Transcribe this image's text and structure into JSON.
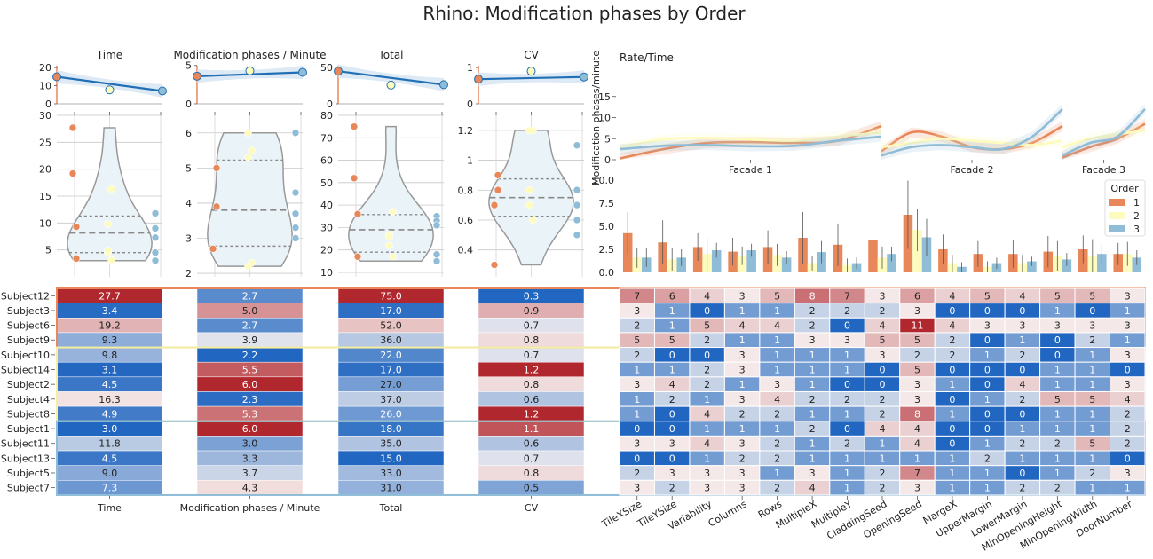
{
  "title": "Rhino: Modification phases by Order",
  "colors": {
    "order1": "#e8875a",
    "order2": "#fdfbbd",
    "order3": "#8fbcd6",
    "line": "#2170b5",
    "violin_fill": "#eaf3f8",
    "violin_stroke": "#999999",
    "heat_low": "#2166c0",
    "heat_mid": "#f7f2f1",
    "heat_high": "#b1272e"
  },
  "subjects": [
    "Subject12",
    "Subject3",
    "Subject6",
    "Subject9",
    "Subject10",
    "Subject14",
    "Subject2",
    "Subject4",
    "Subject8",
    "Subject1",
    "Subject11",
    "Subject13",
    "Subject5",
    "Subject7"
  ],
  "subject_order": [
    1,
    1,
    1,
    1,
    2,
    2,
    2,
    2,
    2,
    3,
    3,
    3,
    3,
    3
  ],
  "chart_data": [
    {
      "type": "violin",
      "title": "Time",
      "xlabel": "Time",
      "ylim": [
        0,
        30
      ],
      "yticks": [
        5,
        10,
        15,
        20,
        25,
        30
      ],
      "values": [
        27.7,
        3.4,
        19.2,
        9.3,
        9.8,
        3.1,
        4.5,
        16.3,
        4.9,
        3.0,
        11.8,
        4.5,
        9.0,
        7.3
      ],
      "value_labels": [
        "27.7",
        "3.4",
        "19.2",
        "9.3",
        "9.8",
        "3.1",
        "4.5",
        "16.3",
        "4.9",
        "3.0",
        "11.8",
        "4.5",
        "9.0",
        "7.3"
      ],
      "trend": {
        "ylim": [
          0,
          22
        ],
        "yticks": [
          0,
          10,
          20
        ],
        "means": [
          14.9,
          7.7,
          7.1
        ]
      }
    },
    {
      "type": "violin",
      "title": "Modification phases / Minute",
      "xlabel": "Modification phases / Minute",
      "ylim": [
        1.9,
        6.5
      ],
      "yticks": [
        2,
        3,
        4,
        5,
        6
      ],
      "values": [
        2.7,
        5.0,
        2.7,
        3.9,
        2.2,
        5.5,
        6.0,
        2.3,
        5.3,
        6.0,
        3.0,
        3.3,
        3.7,
        4.3
      ],
      "value_labels": [
        "2.7",
        "5.0",
        "2.7",
        "3.9",
        "2.2",
        "5.5",
        "6.0",
        "2.3",
        "5.3",
        "6.0",
        "3.0",
        "3.3",
        "3.7",
        "4.3"
      ],
      "trend": {
        "ylim": [
          0,
          5.2
        ],
        "yticks": [
          0,
          5
        ],
        "means": [
          3.6,
          4.3,
          4.1
        ]
      }
    },
    {
      "type": "violin",
      "title": "Total",
      "xlabel": "Total",
      "ylim": [
        8,
        80
      ],
      "yticks": [
        10,
        20,
        30,
        40,
        50,
        60,
        70,
        80
      ],
      "values": [
        75,
        17,
        52,
        36,
        22,
        17,
        27,
        37,
        26,
        18,
        35,
        15,
        33,
        31
      ],
      "value_labels": [
        "75.0",
        "17.0",
        "52.0",
        "36.0",
        "22.0",
        "17.0",
        "27.0",
        "37.0",
        "26.0",
        "18.0",
        "35.0",
        "15.0",
        "33.0",
        "31.0"
      ],
      "trend": {
        "ylim": [
          0,
          55
        ],
        "yticks": [
          0,
          50
        ],
        "means": [
          45.0,
          25.8,
          26.4
        ]
      }
    },
    {
      "type": "violin",
      "title": "CV",
      "xlabel": "CV",
      "ylim": [
        0.22,
        1.3
      ],
      "yticks": [
        0.4,
        0.6,
        0.8,
        1.0,
        1.2
      ],
      "values": [
        0.3,
        0.9,
        0.7,
        0.8,
        0.7,
        1.2,
        0.8,
        0.6,
        1.2,
        1.1,
        0.6,
        0.7,
        0.8,
        0.5
      ],
      "value_labels": [
        "0.3",
        "0.9",
        "0.7",
        "0.8",
        "0.7",
        "1.2",
        "0.8",
        "0.6",
        "1.2",
        "1.1",
        "0.6",
        "0.7",
        "0.8",
        "0.5"
      ],
      "trend": {
        "ylim": [
          0,
          1.1
        ],
        "yticks": [
          0,
          1
        ],
        "means": [
          0.68,
          0.9,
          0.74
        ]
      }
    },
    {
      "type": "line",
      "title": "Rate/Time",
      "ylabel": "Modification phases/minute",
      "ylim": [
        0,
        20
      ],
      "yticks": [
        0,
        5,
        10,
        15
      ],
      "facades": [
        "Facade 1",
        "Facade 2",
        "Facade 3"
      ],
      "series": [
        {
          "order": 1,
          "facade_values": [
            [
              0.3,
              2.5,
              4.0,
              4.2,
              4.0,
              4.5,
              8.0
            ],
            [
              2.0,
              6.5,
              5.5,
              3.0,
              2.5,
              4.0,
              8.0
            ],
            [
              0.5,
              3.0,
              5.0,
              8.5
            ]
          ]
        },
        {
          "order": 2,
          "facade_values": [
            [
              3.0,
              4.8,
              5.2,
              4.8,
              4.5,
              5.5,
              6.5
            ],
            [
              3.0,
              4.0,
              5.0,
              4.5,
              4.0,
              3.5,
              4.5
            ],
            [
              3.0,
              5.0,
              6.0,
              7.0
            ]
          ]
        },
        {
          "order": 3,
          "facade_values": [
            [
              2.5,
              3.3,
              3.5,
              3.2,
              3.3,
              4.5,
              5.5
            ],
            [
              1.0,
              3.0,
              3.5,
              3.0,
              2.5,
              5.5,
              12.0
            ],
            [
              1.0,
              4.0,
              5.5,
              12.0
            ]
          ]
        }
      ]
    },
    {
      "type": "bar",
      "ylim": [
        0,
        10
      ],
      "yticks": [
        0.0,
        2.5,
        5.0,
        7.5,
        10.0
      ],
      "legend_title": "Order",
      "legend_labels": [
        "1",
        "2",
        "3"
      ],
      "legend_position": "top-right",
      "categories": [
        "TileXSize",
        "TileYSize",
        "Variability",
        "Columns",
        "Rows",
        "MultipleX",
        "MultipleY",
        "CladdingSeed",
        "OpeningSeed",
        "MargeX",
        "UpperMargin",
        "LowerMargin",
        "MinOpeningHeight",
        "MinOpeningWidth",
        "DoorNumber"
      ],
      "series": [
        {
          "name": "1",
          "values": [
            4.25,
            3.25,
            2.75,
            2.25,
            2.75,
            3.75,
            3.0,
            3.5,
            6.25,
            2.5,
            2.0,
            2.0,
            2.25,
            2.5,
            2.0
          ],
          "err": [
            2.3,
            2.4,
            1.5,
            1.5,
            1.8,
            2.8,
            2.3,
            1.4,
            3.7,
            1.6,
            1.4,
            1.5,
            1.7,
            1.5,
            1.2
          ]
        },
        {
          "name": "2",
          "values": [
            1.6,
            1.4,
            2.0,
            1.8,
            1.9,
            1.0,
            0.8,
            1.6,
            4.6,
            1.0,
            0.6,
            1.0,
            1.8,
            1.8,
            2.0
          ],
          "err": [
            1.1,
            1.2,
            1.8,
            1.0,
            1.2,
            0.8,
            0.7,
            1.2,
            2.3,
            0.9,
            0.6,
            0.9,
            1.6,
            1.8,
            1.3
          ]
        },
        {
          "name": "3",
          "values": [
            1.6,
            1.6,
            2.4,
            2.4,
            1.6,
            2.2,
            1.0,
            2.0,
            3.8,
            0.6,
            1.0,
            1.2,
            1.4,
            2.0,
            1.6
          ],
          "err": [
            1.0,
            0.9,
            0.8,
            0.7,
            0.7,
            1.2,
            0.6,
            0.8,
            2.0,
            0.5,
            0.6,
            0.5,
            0.7,
            1.0,
            0.8
          ]
        }
      ]
    },
    {
      "type": "heatmap",
      "rows": [
        "Subject12",
        "Subject3",
        "Subject6",
        "Subject9",
        "Subject10",
        "Subject14",
        "Subject2",
        "Subject4",
        "Subject8",
        "Subject1",
        "Subject11",
        "Subject13",
        "Subject5",
        "Subject7"
      ],
      "columns": [
        "TileXSize",
        "TileYSize",
        "Variability",
        "Columns",
        "Rows",
        "MultipleX",
        "MultipleY",
        "CladdingSeed",
        "OpeningSeed",
        "MargeX",
        "UpperMargin",
        "LowerMargin",
        "MinOpeningHeight",
        "MinOpeningWidth",
        "DoorNumber"
      ],
      "values": [
        [
          7,
          6,
          4,
          3,
          5,
          8,
          7,
          3,
          6,
          4,
          5,
          4,
          5,
          5,
          3
        ],
        [
          3,
          1,
          0,
          1,
          1,
          2,
          2,
          2,
          3,
          0,
          0,
          0,
          1,
          0,
          1
        ],
        [
          2,
          1,
          5,
          4,
          4,
          2,
          0,
          4,
          11,
          4,
          3,
          3,
          3,
          3,
          3
        ],
        [
          5,
          5,
          2,
          1,
          1,
          3,
          3,
          5,
          5,
          2,
          0,
          1,
          0,
          2,
          1
        ],
        [
          2,
          0,
          0,
          3,
          1,
          1,
          1,
          3,
          2,
          2,
          1,
          2,
          0,
          1,
          3
        ],
        [
          1,
          1,
          2,
          3,
          1,
          1,
          1,
          0,
          5,
          0,
          0,
          0,
          1,
          1,
          0
        ],
        [
          3,
          4,
          2,
          1,
          3,
          1,
          0,
          0,
          3,
          1,
          0,
          4,
          1,
          1,
          3
        ],
        [
          1,
          2,
          1,
          3,
          4,
          2,
          2,
          2,
          3,
          0,
          1,
          2,
          5,
          5,
          4
        ],
        [
          1,
          0,
          4,
          2,
          2,
          1,
          1,
          2,
          8,
          1,
          0,
          0,
          1,
          1,
          2
        ],
        [
          0,
          0,
          1,
          1,
          1,
          2,
          0,
          4,
          4,
          0,
          0,
          1,
          1,
          1,
          2
        ],
        [
          3,
          3,
          4,
          3,
          2,
          1,
          2,
          1,
          4,
          0,
          1,
          2,
          2,
          5,
          2
        ],
        [
          0,
          0,
          1,
          2,
          2,
          1,
          1,
          1,
          1,
          1,
          2,
          1,
          1,
          1,
          0
        ],
        [
          2,
          3,
          3,
          3,
          1,
          3,
          1,
          2,
          7,
          1,
          1,
          0,
          1,
          2,
          3
        ],
        [
          3,
          2,
          3,
          3,
          2,
          4,
          1,
          2,
          3,
          1,
          1,
          2,
          2,
          1,
          1
        ]
      ]
    }
  ]
}
